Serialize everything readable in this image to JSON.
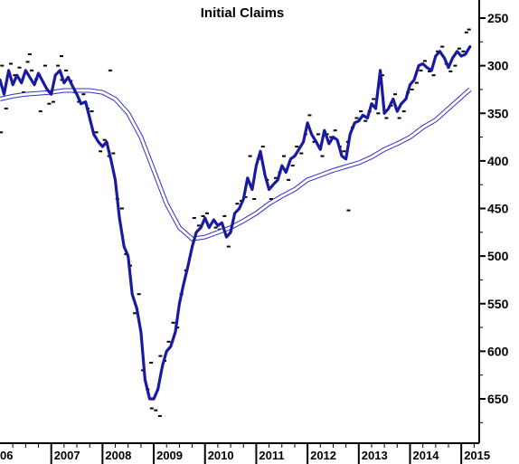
{
  "chart_data": {
    "type": "line",
    "title": "Initial Claims",
    "xlabel": "",
    "ylabel": "",
    "y_axis": "right",
    "y_inverted": true,
    "ylim": [
      700,
      242
    ],
    "xlim": [
      2006.0,
      2015.35
    ],
    "y_ticks": [
      250,
      300,
      350,
      400,
      450,
      500,
      550,
      600,
      650
    ],
    "x_tick_labels": [
      "06",
      "2007",
      "2008",
      "2009",
      "2010",
      "2011",
      "2012",
      "2013",
      "2014",
      "2015"
    ],
    "grid": false,
    "legend": "none",
    "colors": {
      "main_line": "#1a1aa0",
      "band": "#3030c8",
      "dots": "#000000"
    },
    "series": [
      {
        "style": "thick-line",
        "x": [
          2006.0,
          2006.08,
          2006.17,
          2006.25,
          2006.33,
          2006.42,
          2006.5,
          2006.58,
          2006.67,
          2006.75,
          2006.83,
          2006.92,
          2007.0,
          2007.08,
          2007.17,
          2007.25,
          2007.33,
          2007.42,
          2007.5,
          2007.58,
          2007.67,
          2007.75,
          2007.83,
          2007.92,
          2008.0,
          2008.08,
          2008.17,
          2008.25,
          2008.33,
          2008.42,
          2008.5,
          2008.58,
          2008.67,
          2008.75,
          2008.83,
          2008.92,
          2009.0,
          2009.08,
          2009.17,
          2009.25,
          2009.33,
          2009.42,
          2009.5,
          2009.58,
          2009.67,
          2009.75,
          2009.83,
          2009.92,
          2010.0,
          2010.08,
          2010.17,
          2010.25,
          2010.33,
          2010.42,
          2010.5,
          2010.58,
          2010.67,
          2010.75,
          2010.83,
          2010.92,
          2011.0,
          2011.08,
          2011.17,
          2011.25,
          2011.33,
          2011.42,
          2011.5,
          2011.58,
          2011.67,
          2011.75,
          2011.83,
          2011.92,
          2012.0,
          2012.08,
          2012.17,
          2012.25,
          2012.33,
          2012.42,
          2012.5,
          2012.58,
          2012.67,
          2012.75,
          2012.83,
          2012.92,
          2013.0,
          2013.08,
          2013.17,
          2013.25,
          2013.33,
          2013.42,
          2013.5,
          2013.58,
          2013.67,
          2013.75,
          2013.83,
          2013.92,
          2014.0,
          2014.08,
          2014.17,
          2014.25,
          2014.33,
          2014.42,
          2014.5,
          2014.58,
          2014.67,
          2014.75,
          2014.83,
          2014.92,
          2015.0,
          2015.08,
          2015.17
        ],
        "values": [
          315,
          330,
          305,
          320,
          310,
          318,
          305,
          312,
          320,
          308,
          316,
          325,
          330,
          310,
          305,
          318,
          312,
          322,
          330,
          340,
          338,
          355,
          372,
          380,
          385,
          380,
          400,
          420,
          460,
          490,
          500,
          540,
          555,
          580,
          630,
          650,
          650,
          640,
          615,
          600,
          595,
          580,
          550,
          530,
          510,
          490,
          475,
          470,
          460,
          470,
          462,
          468,
          465,
          480,
          475,
          455,
          450,
          440,
          418,
          430,
          405,
          390,
          415,
          430,
          425,
          420,
          405,
          412,
          398,
          395,
          388,
          380,
          360,
          372,
          380,
          388,
          368,
          382,
          375,
          378,
          395,
          398,
          372,
          360,
          358,
          352,
          355,
          340,
          345,
          305,
          350,
          345,
          335,
          348,
          340,
          335,
          320,
          315,
          300,
          298,
          302,
          305,
          290,
          285,
          292,
          302,
          292,
          285,
          290,
          288,
          280
        ]
      },
      {
        "style": "double-thin-line",
        "x": [
          2006.0,
          2006.25,
          2006.5,
          2006.75,
          2007.0,
          2007.25,
          2007.5,
          2007.75,
          2008.0,
          2008.25,
          2008.5,
          2008.75,
          2009.0,
          2009.25,
          2009.5,
          2009.75,
          2010.0,
          2010.25,
          2010.5,
          2010.75,
          2011.0,
          2011.25,
          2011.5,
          2011.75,
          2012.0,
          2012.25,
          2012.5,
          2012.75,
          2013.0,
          2013.25,
          2013.5,
          2013.75,
          2014.0,
          2014.25,
          2014.5,
          2014.75,
          2015.0,
          2015.17
        ],
        "values": [
          335,
          332,
          330,
          329,
          328,
          326,
          326,
          326,
          328,
          335,
          350,
          375,
          410,
          445,
          470,
          482,
          480,
          475,
          470,
          463,
          455,
          445,
          437,
          430,
          420,
          415,
          410,
          406,
          402,
          396,
          388,
          382,
          375,
          365,
          357,
          345,
          333,
          325
        ]
      }
    ],
    "scatter_x": [
      2006.04,
      2006.12,
      2006.21,
      2006.29,
      2006.38,
      2006.46,
      2006.54,
      2006.62,
      2006.71,
      2006.79,
      2006.88,
      2006.96,
      2007.04,
      2007.13,
      2007.21,
      2007.29,
      2007.38,
      2007.46,
      2007.54,
      2007.63,
      2007.71,
      2007.79,
      2007.88,
      2007.96,
      2008.04,
      2008.13,
      2008.21,
      2008.29,
      2008.38,
      2008.46,
      2008.54,
      2008.63,
      2008.71,
      2008.79,
      2008.88,
      2008.96,
      2009.04,
      2009.13,
      2009.21,
      2009.29,
      2009.38,
      2009.46,
      2009.54,
      2009.63,
      2009.71,
      2009.79,
      2009.88,
      2009.96,
      2010.04,
      2010.13,
      2010.21,
      2010.29,
      2010.38,
      2010.46,
      2010.54,
      2010.63,
      2010.71,
      2010.79,
      2010.88,
      2010.96,
      2011.04,
      2011.13,
      2011.21,
      2011.29,
      2011.38,
      2011.46,
      2011.54,
      2011.63,
      2011.71,
      2011.79,
      2011.88,
      2011.96,
      2012.04,
      2012.13,
      2012.21,
      2012.29,
      2012.38,
      2012.46,
      2012.54,
      2012.63,
      2012.71,
      2012.79,
      2012.88,
      2012.96,
      2013.04,
      2013.13,
      2013.21,
      2013.29,
      2013.38,
      2013.46,
      2013.54,
      2013.63,
      2013.71,
      2013.79,
      2013.88,
      2013.96,
      2014.04,
      2014.13,
      2014.21,
      2014.29,
      2014.38,
      2014.46,
      2014.54,
      2014.63,
      2014.71,
      2014.79,
      2014.88,
      2014.96,
      2015.04,
      2015.1,
      2015.15,
      2006.02,
      2006.58,
      2007.2,
      2008.15,
      2008.95,
      2009.12,
      2012.8
    ],
    "scatter_values": [
      300,
      345,
      298,
      310,
      302,
      328,
      296,
      305,
      314,
      348,
      300,
      340,
      338,
      300,
      315,
      305,
      316,
      328,
      338,
      330,
      345,
      348,
      370,
      390,
      378,
      395,
      392,
      440,
      450,
      498,
      510,
      560,
      540,
      620,
      640,
      660,
      662,
      605,
      610,
      590,
      570,
      575,
      540,
      515,
      480,
      460,
      468,
      458,
      455,
      478,
      470,
      472,
      458,
      490,
      470,
      445,
      442,
      438,
      395,
      440,
      398,
      385,
      420,
      440,
      418,
      412,
      395,
      420,
      405,
      385,
      392,
      372,
      352,
      380,
      372,
      395,
      372,
      375,
      368,
      385,
      390,
      380,
      365,
      355,
      348,
      358,
      348,
      335,
      350,
      310,
      355,
      342,
      330,
      355,
      348,
      328,
      325,
      318,
      305,
      295,
      306,
      310,
      285,
      280,
      298,
      306,
      300,
      282,
      285,
      265,
      262,
      370,
      288,
      290,
      305,
      612,
      668,
      452
    ]
  }
}
